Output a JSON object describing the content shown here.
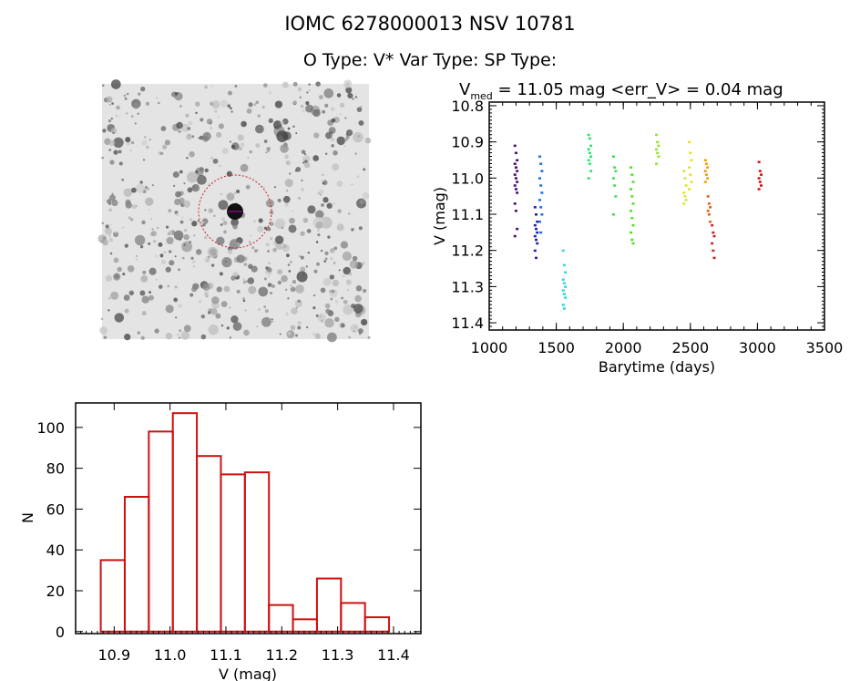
{
  "header": {
    "title": "IOMC 6278000013    NSV 10781",
    "subtitle": "O Type: V*   Var Type:    SP Type:"
  },
  "finding_chart": {
    "colors": {
      "circle": "#d02020",
      "cross": "#c000c0"
    }
  },
  "chart_data": [
    {
      "type": "scatter",
      "title_main": "V",
      "title_sub": "med",
      "title_rest": " = 11.05 mag <err_V> = 0.04 mag",
      "xlabel": "Barytime (days)",
      "ylabel": "V (mag)",
      "xlim": [
        1000,
        3500
      ],
      "ylim": [
        10.79,
        11.42
      ],
      "y_inverted": true,
      "xticks": [
        1000,
        1500,
        2000,
        2500,
        3000,
        3500
      ],
      "yticks": [
        "10.8",
        "10.9",
        "11.0",
        "11.1",
        "11.2",
        "11.3",
        "11.4"
      ],
      "grid": false,
      "seasons": [
        {
          "x": 1200,
          "color": "#4a0a70",
          "v": [
            10.91,
            10.93,
            10.95,
            10.96,
            10.97,
            10.98,
            10.99,
            11.0,
            11.01,
            11.02,
            11.03,
            11.04,
            11.07,
            11.09,
            11.14,
            11.16
          ]
        },
        {
          "x": 1350,
          "color": "#2020a8",
          "v": [
            11.08,
            11.1,
            11.12,
            11.13,
            11.14,
            11.15,
            11.16,
            11.17,
            11.18,
            11.2,
            11.22
          ]
        },
        {
          "x": 1385,
          "color": "#1e70e0",
          "v": [
            10.94,
            10.96,
            10.98,
            11.0,
            11.02,
            11.04,
            11.06,
            11.08,
            11.1,
            11.12,
            11.15
          ]
        },
        {
          "x": 1560,
          "color": "#30d8e0",
          "v": [
            11.2,
            11.24,
            11.26,
            11.28,
            11.29,
            11.3,
            11.31,
            11.32,
            11.33,
            11.35,
            11.36
          ]
        },
        {
          "x": 1750,
          "color": "#30e070",
          "v": [
            10.88,
            10.89,
            10.91,
            10.92,
            10.93,
            10.94,
            10.95,
            10.96,
            10.98,
            11.0
          ]
        },
        {
          "x": 1935,
          "color": "#40e050",
          "v": [
            10.94,
            10.97,
            10.98,
            11.0,
            11.02,
            11.05,
            11.1
          ]
        },
        {
          "x": 2065,
          "color": "#50e020",
          "v": [
            10.97,
            10.99,
            11.01,
            11.03,
            11.05,
            11.07,
            11.09,
            11.11,
            11.13,
            11.15,
            11.17,
            11.18
          ]
        },
        {
          "x": 2255,
          "color": "#98e030",
          "v": [
            10.88,
            10.9,
            10.91,
            10.92,
            10.93,
            10.94,
            10.96
          ]
        },
        {
          "x": 2460,
          "color": "#d8e830",
          "v": [
            10.98,
            11.0,
            11.02,
            11.04,
            11.05,
            11.06,
            11.07
          ]
        },
        {
          "x": 2500,
          "color": "#e8e020",
          "v": [
            10.9,
            10.93,
            10.95,
            10.97,
            10.99,
            11.01,
            11.03
          ]
        },
        {
          "x": 2620,
          "color": "#f0a000",
          "v": [
            10.95,
            10.96,
            10.97,
            10.98,
            10.99,
            11.0,
            11.01
          ]
        },
        {
          "x": 2640,
          "color": "#e06020",
          "v": [
            11.05,
            11.07,
            11.08,
            11.09,
            11.1,
            11.12
          ]
        },
        {
          "x": 2670,
          "color": "#d02020",
          "v": [
            11.13,
            11.15,
            11.16,
            11.18,
            11.2,
            11.22
          ]
        },
        {
          "x": 3020,
          "color": "#d01010",
          "v": [
            10.955,
            10.98,
            10.99,
            11.0,
            11.01,
            11.02,
            11.03
          ]
        }
      ]
    },
    {
      "type": "bar",
      "xlabel": "V (mag)",
      "ylabel": "N",
      "xlim": [
        10.831,
        11.449
      ],
      "ylim": [
        -1,
        112
      ],
      "xticks": [
        "10.9",
        "11.0",
        "11.1",
        "11.2",
        "11.3",
        "11.4"
      ],
      "yticks": [
        "0",
        "20",
        "40",
        "60",
        "80",
        "100"
      ],
      "bin_start": 10.876,
      "bin_width": 0.043,
      "values": [
        35,
        66,
        98,
        107,
        86,
        77,
        78,
        13,
        6,
        26,
        14,
        7
      ],
      "color": "#d01010"
    }
  ]
}
